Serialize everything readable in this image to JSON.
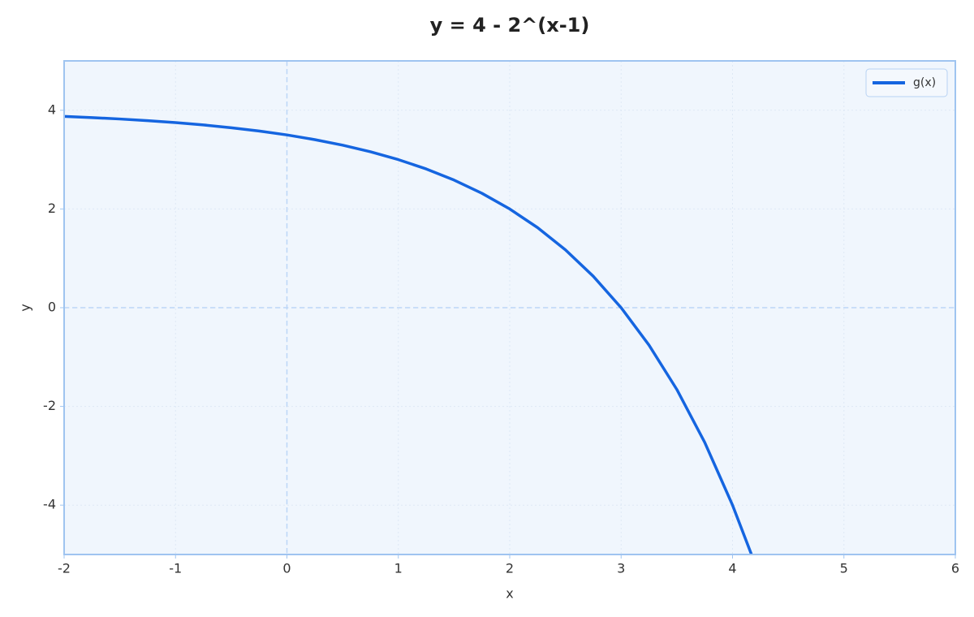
{
  "chart_data": {
    "type": "line",
    "title": "y = 4 - 2^(x-1)",
    "x_label": "x",
    "y_label": "y",
    "x": [
      -2,
      -1.75,
      -1.5,
      -1.25,
      -1,
      -0.75,
      -0.5,
      -0.25,
      0,
      0.25,
      0.5,
      0.75,
      1,
      1.25,
      1.5,
      1.75,
      2,
      2.25,
      2.5,
      2.75,
      3,
      3.25,
      3.5,
      3.75,
      4,
      4.17
    ],
    "series": [
      {
        "name": "g(x)",
        "color": "#1565e0",
        "values": [
          3.875,
          3.851,
          3.823,
          3.79,
          3.75,
          3.703,
          3.646,
          3.58,
          3.5,
          3.405,
          3.293,
          3.159,
          3,
          2.811,
          2.586,
          2.318,
          2,
          1.622,
          1.172,
          0.636,
          0,
          -0.757,
          -1.657,
          -2.727,
          -4,
          -5.0
        ]
      }
    ],
    "xlim": [
      -2,
      6
    ],
    "ylim": [
      -5,
      5
    ],
    "xticks": [
      -2,
      -1,
      0,
      1,
      2,
      3,
      4,
      5,
      6
    ],
    "yticks": [
      -4,
      -2,
      0,
      2,
      4
    ],
    "grid": true,
    "legend": "upper right"
  }
}
